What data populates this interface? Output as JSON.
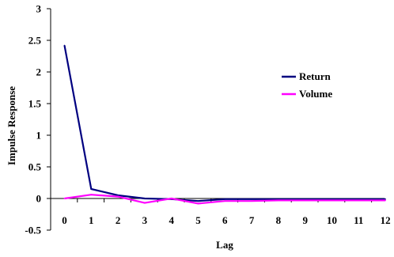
{
  "chart_data": {
    "type": "line",
    "title": "",
    "xlabel": "Lag",
    "ylabel": "Impulse Response",
    "x": [
      0,
      1,
      2,
      3,
      4,
      5,
      6,
      7,
      8,
      9,
      10,
      11,
      12
    ],
    "x_tick_labels": [
      "0",
      "1",
      "2",
      "3",
      "4",
      "5",
      "6",
      "7",
      "8",
      "9",
      "10",
      "11",
      "12"
    ],
    "y_tick_labels": [
      "3",
      "2.5",
      "2",
      "1.5",
      "1",
      "0.5",
      "0",
      "-0.5"
    ],
    "y_ticks": [
      3,
      2.5,
      2,
      1.5,
      1,
      0.5,
      0,
      -0.5
    ],
    "ylim": [
      -0.5,
      3
    ],
    "grid": false,
    "legend_position": "right",
    "series": [
      {
        "name": "Return",
        "color": "#000080",
        "values": [
          2.42,
          0.15,
          0.05,
          0.0,
          -0.01,
          -0.04,
          -0.01,
          -0.01,
          -0.01,
          -0.01,
          -0.01,
          -0.01,
          -0.01
        ]
      },
      {
        "name": "Volume",
        "color": "#ff00ff",
        "values": [
          0.0,
          0.06,
          0.03,
          -0.07,
          0.0,
          -0.08,
          -0.04,
          -0.04,
          -0.03,
          -0.03,
          -0.03,
          -0.03,
          -0.03
        ]
      }
    ]
  }
}
